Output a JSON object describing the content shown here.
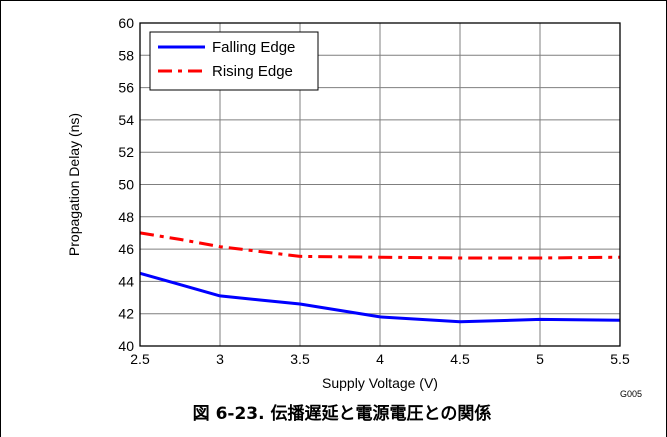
{
  "chart_data": {
    "type": "line",
    "xlabel": "Supply Voltage (V)",
    "ylabel": "Propagation Delay (ns)",
    "xlim": [
      2.5,
      5.5
    ],
    "ylim": [
      40,
      60
    ],
    "xticks": [
      "2.5",
      "3",
      "3.5",
      "4",
      "4.5",
      "5",
      "5.5"
    ],
    "yticks": [
      "40",
      "42",
      "44",
      "46",
      "48",
      "50",
      "52",
      "54",
      "56",
      "58",
      "60"
    ],
    "grid": true,
    "legend_position": "top-left",
    "series": [
      {
        "name": "Falling Edge",
        "color": "#0000ff",
        "line_style": "solid",
        "points": [
          [
            2.5,
            44.5
          ],
          [
            2.75,
            43.8
          ],
          [
            3.0,
            43.1
          ],
          [
            3.25,
            42.85
          ],
          [
            3.5,
            42.6
          ],
          [
            4.0,
            41.8
          ],
          [
            4.5,
            41.5
          ],
          [
            5.0,
            41.65
          ],
          [
            5.5,
            41.6
          ]
        ]
      },
      {
        "name": "Rising Edge",
        "color": "#ff0000",
        "line_style": "dashed",
        "points": [
          [
            2.5,
            47.0
          ],
          [
            2.75,
            46.6
          ],
          [
            3.0,
            46.15
          ],
          [
            3.25,
            45.85
          ],
          [
            3.5,
            45.55
          ],
          [
            4.0,
            45.5
          ],
          [
            4.5,
            45.45
          ],
          [
            5.0,
            45.45
          ],
          [
            5.5,
            45.5
          ]
        ]
      }
    ],
    "figure_code": "G005"
  },
  "caption": "図 6-23. 伝播遅延と電源電圧との関係"
}
